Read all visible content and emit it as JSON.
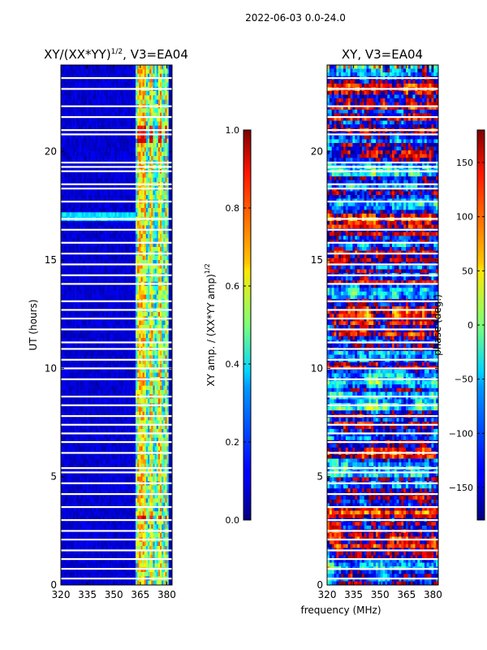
{
  "figure_title": "2022-06-03 0.0-24.0",
  "chart_data": [
    {
      "type": "heatmap",
      "title_main": "XY/(XX*YY)",
      "title_exp": "1/2",
      "title_suffix": ", V3=EA04",
      "ylabel": "UT (hours)",
      "xlabel": "",
      "xlim": [
        320,
        383
      ],
      "ylim": [
        0,
        24
      ],
      "xticks": [
        320,
        335,
        350,
        365,
        380
      ],
      "yticks": [
        0,
        5,
        10,
        15,
        20
      ],
      "colormap": "jet",
      "colorbar": {
        "label_main": "XY amp. / (XX*YY amp)",
        "label_exp": "1/2",
        "range": [
          0.0,
          1.0
        ],
        "ticks": [
          "0.0",
          "0.2",
          "0.4",
          "0.6",
          "0.8",
          "1.0"
        ],
        "tick_values": [
          0.0,
          0.2,
          0.4,
          0.6,
          0.8,
          1.0
        ]
      },
      "value_range": [
        0,
        1
      ],
      "high_channels_mhz": [
        363,
        364,
        365,
        366,
        367,
        370,
        371,
        375,
        376,
        379
      ],
      "flagged_hours": [
        0.3,
        0.75,
        1.2,
        1.6,
        2.1,
        2.5,
        3.0,
        3.6,
        4.2,
        4.7,
        5.2,
        5.4,
        6.1,
        6.6,
        7.0,
        7.4,
        7.8,
        8.3,
        8.7,
        9.5,
        10.0,
        10.4,
        10.9,
        11.2,
        11.8,
        12.3,
        12.7,
        13.1,
        13.9,
        14.3,
        14.8,
        15.3,
        15.8,
        16.4,
        16.9,
        17.7,
        18.3,
        18.5,
        19.1,
        19.3,
        19.5,
        20.8,
        21.0,
        21.6,
        22.1,
        22.9,
        23.4
      ]
    },
    {
      "type": "heatmap",
      "title": "XY, V3=EA04",
      "ylabel": "",
      "xlabel": "frequency (MHz)",
      "xlim": [
        320,
        383
      ],
      "ylim": [
        0,
        24
      ],
      "xticks": [
        320,
        335,
        350,
        365,
        380
      ],
      "yticks": [
        0,
        5,
        10,
        15,
        20
      ],
      "colormap": "jet",
      "colorbar": {
        "label": "phase (deg.)",
        "range": [
          -180,
          180
        ],
        "ticks": [
          "−150",
          "−100",
          "−50",
          "0",
          "50",
          "100",
          "150"
        ],
        "tick_values": [
          -150,
          -100,
          -50,
          0,
          50,
          100,
          150
        ]
      },
      "value_range": [
        -180,
        180
      ],
      "flagged_hours": [
        0.3,
        0.75,
        1.2,
        1.6,
        2.1,
        2.5,
        3.0,
        3.6,
        4.2,
        4.7,
        5.2,
        5.4,
        6.1,
        6.6,
        7.0,
        7.4,
        7.8,
        8.3,
        8.7,
        9.5,
        10.0,
        10.4,
        10.9,
        11.2,
        11.8,
        12.3,
        12.7,
        13.1,
        13.9,
        14.3,
        14.8,
        15.3,
        15.8,
        16.4,
        16.9,
        17.7,
        18.3,
        18.5,
        19.1,
        19.3,
        19.5,
        20.8,
        21.0,
        21.6,
        22.1,
        22.9,
        23.4
      ]
    }
  ]
}
